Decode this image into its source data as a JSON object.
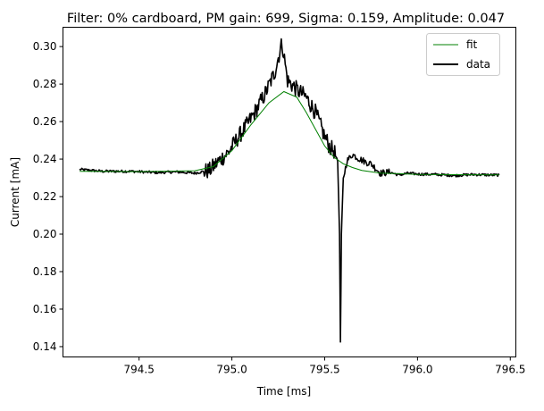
{
  "chart_data": {
    "type": "line",
    "title": "Filter: 0% cardboard, PM gain: 699, Sigma: 0.159, Amplitude: 0.047",
    "xlabel": "Time [ms]",
    "ylabel": "Current [mA]",
    "xlim": [
      794.09,
      796.53
    ],
    "ylim": [
      0.1345,
      0.3103
    ],
    "xticks": [
      794.5,
      795.0,
      795.5,
      796.0,
      796.5
    ],
    "xtick_labels": [
      "794.5",
      "795.0",
      "795.5",
      "796.0",
      "796.5"
    ],
    "yticks": [
      0.14,
      0.16,
      0.18,
      0.2,
      0.22,
      0.24,
      0.26,
      0.28,
      0.3
    ],
    "ytick_labels": [
      "0.14",
      "0.16",
      "0.18",
      "0.20",
      "0.22",
      "0.24",
      "0.26",
      "0.28",
      "0.30"
    ],
    "legend_position": "top-right",
    "grid": false,
    "series": [
      {
        "name": "fit",
        "color": "#008000",
        "style": "thin-line",
        "x": [
          794.18,
          794.5,
          794.8,
          794.9,
          795.0,
          795.1,
          795.2,
          795.28,
          795.35,
          795.4,
          795.45,
          795.5,
          795.55,
          795.6,
          795.65,
          795.7,
          795.75,
          795.8,
          795.9,
          796.0,
          796.2,
          796.44
        ],
        "y": [
          0.2335,
          0.2333,
          0.2338,
          0.236,
          0.2445,
          0.258,
          0.27,
          0.276,
          0.273,
          0.265,
          0.256,
          0.247,
          0.241,
          0.2375,
          0.2355,
          0.234,
          0.2332,
          0.2325,
          0.2322,
          0.2318,
          0.2317,
          0.2316
        ]
      },
      {
        "name": "data",
        "color": "#000000",
        "style": "noisy-thick-line",
        "x": [
          794.18,
          794.3,
          794.45,
          794.6,
          794.7,
          794.8,
          794.88,
          794.93,
          794.98,
          795.03,
          795.08,
          795.13,
          795.18,
          795.23,
          795.27,
          795.3,
          795.35,
          795.4,
          795.45,
          795.5,
          795.53,
          795.55,
          795.57,
          795.58,
          795.585,
          795.59,
          795.6,
          795.62,
          795.65,
          795.68,
          795.72,
          795.75,
          795.8,
          795.85,
          795.9,
          795.95,
          796.0,
          796.1,
          796.2,
          796.3,
          796.4,
          796.44
        ],
        "y": [
          0.2345,
          0.2335,
          0.2335,
          0.2328,
          0.2332,
          0.2325,
          0.234,
          0.239,
          0.2435,
          0.251,
          0.258,
          0.266,
          0.275,
          0.286,
          0.302,
          0.282,
          0.277,
          0.273,
          0.265,
          0.252,
          0.246,
          0.2445,
          0.2385,
          0.2,
          0.1425,
          0.2,
          0.2295,
          0.239,
          0.2425,
          0.2405,
          0.2385,
          0.2375,
          0.2325,
          0.233,
          0.2315,
          0.2325,
          0.232,
          0.2318,
          0.2312,
          0.2318,
          0.2315,
          0.2315
        ]
      }
    ]
  }
}
